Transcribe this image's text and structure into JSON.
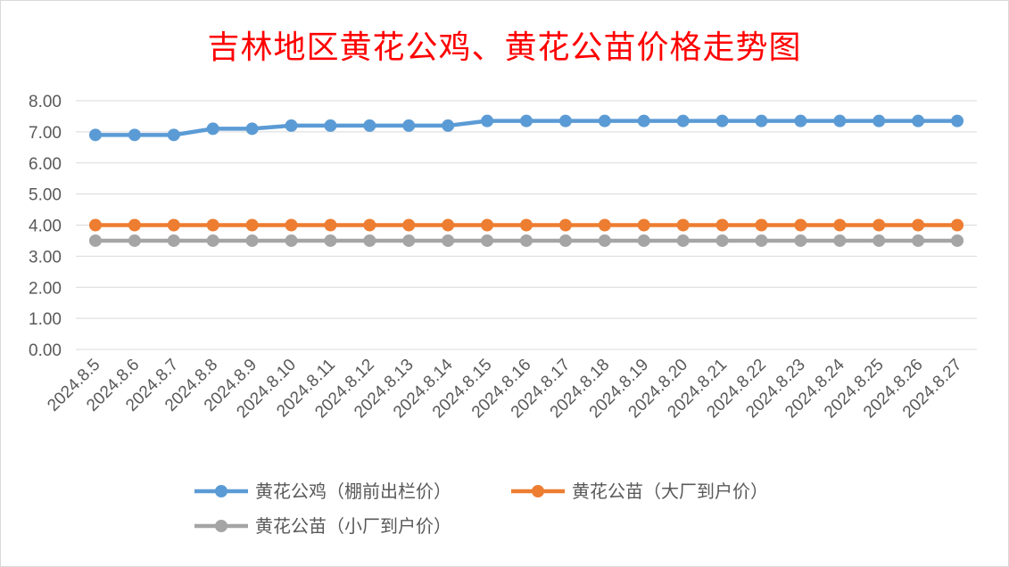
{
  "chart_data": {
    "type": "line",
    "title": "吉林地区黄花公鸡、黄花公苗价格走势图",
    "xlabel": "",
    "ylabel": "",
    "ylim": [
      0,
      8
    ],
    "yticks": [
      "0.00",
      "1.00",
      "2.00",
      "3.00",
      "4.00",
      "5.00",
      "6.00",
      "7.00",
      "8.00"
    ],
    "grid": true,
    "legend_position": "bottom",
    "categories": [
      "2024.8.5",
      "2024.8.6",
      "2024.8.7",
      "2024.8.8",
      "2024.8.9",
      "2024.8.10",
      "2024.8.11",
      "2024.8.12",
      "2024.8.13",
      "2024.8.14",
      "2024.8.15",
      "2024.8.16",
      "2024.8.17",
      "2024.8.18",
      "2024.8.19",
      "2024.8.20",
      "2024.8.21",
      "2024.8.22",
      "2024.8.23",
      "2024.8.24",
      "2024.8.25",
      "2024.8.26",
      "2024.8.27"
    ],
    "series": [
      {
        "name": "黄花公鸡（棚前出栏价）",
        "color": "#5b9bd5",
        "values": [
          6.9,
          6.9,
          6.9,
          7.1,
          7.1,
          7.2,
          7.2,
          7.2,
          7.2,
          7.2,
          7.35,
          7.35,
          7.35,
          7.35,
          7.35,
          7.35,
          7.35,
          7.35,
          7.35,
          7.35,
          7.35,
          7.35,
          7.35
        ]
      },
      {
        "name": "黄花公苗（大厂到户价）",
        "color": "#ed7d31",
        "values": [
          4.0,
          4.0,
          4.0,
          4.0,
          4.0,
          4.0,
          4.0,
          4.0,
          4.0,
          4.0,
          4.0,
          4.0,
          4.0,
          4.0,
          4.0,
          4.0,
          4.0,
          4.0,
          4.0,
          4.0,
          4.0,
          4.0,
          4.0
        ]
      },
      {
        "name": "黄花公苗（小厂到户价）",
        "color": "#a5a5a5",
        "values": [
          3.5,
          3.5,
          3.5,
          3.5,
          3.5,
          3.5,
          3.5,
          3.5,
          3.5,
          3.5,
          3.5,
          3.5,
          3.5,
          3.5,
          3.5,
          3.5,
          3.5,
          3.5,
          3.5,
          3.5,
          3.5,
          3.5,
          3.5
        ]
      }
    ]
  }
}
